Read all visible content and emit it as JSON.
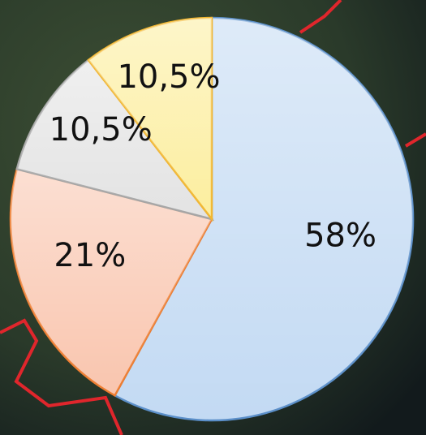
{
  "chart_data": {
    "type": "pie",
    "values": [
      58,
      21,
      10.5,
      10.5
    ],
    "value_labels": [
      "58%",
      "21%",
      "10,5%",
      "10,5%"
    ],
    "colors": [
      "#c3daf3",
      "#f9c5ae",
      "#e3e3e3",
      "#fcee9e"
    ],
    "edge_colors": [
      "#5b8fc9",
      "#ed7d31",
      "#a5a5a5",
      "#f2b731"
    ],
    "start_angle": 0,
    "direction": "clockwise"
  }
}
